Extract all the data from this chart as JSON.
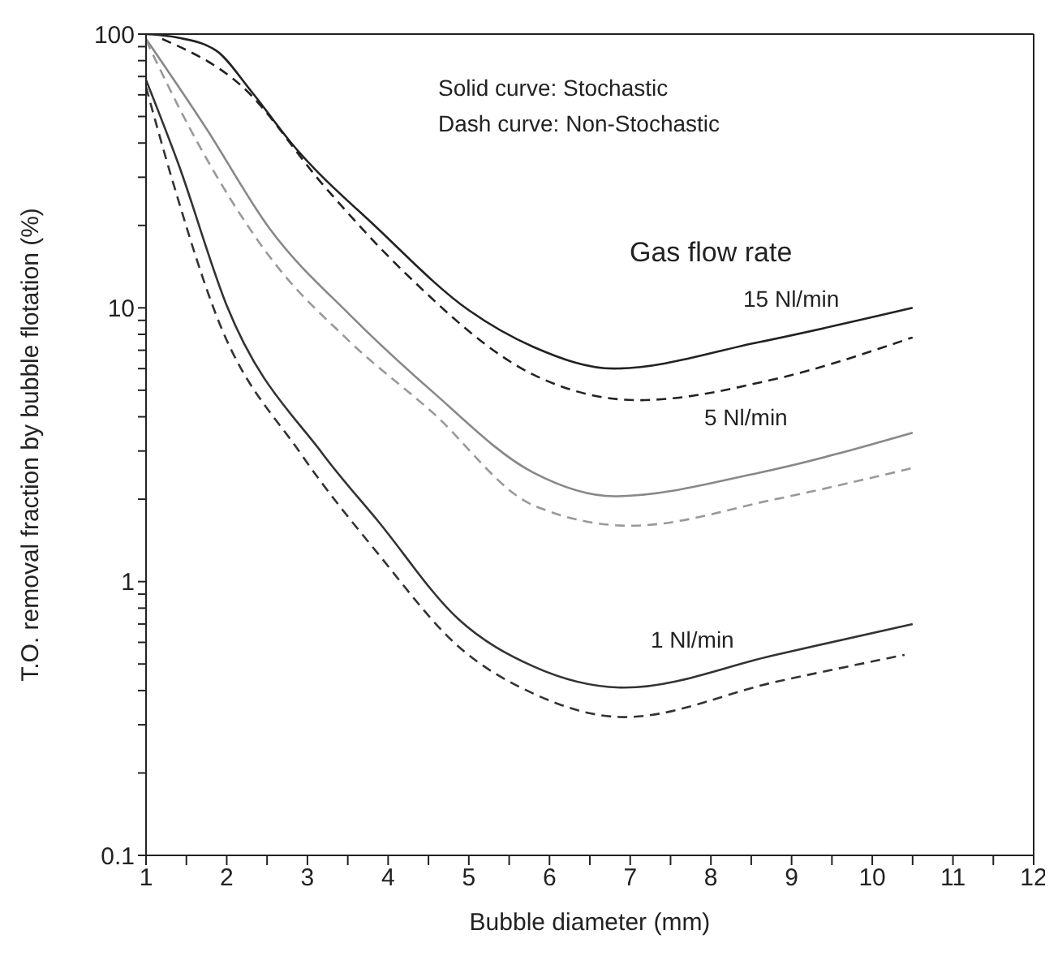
{
  "chart_data": {
    "type": "line",
    "xlabel": "Bubble diameter (mm)",
    "ylabel": "T.O. removal fraction by bubble flotation (%)",
    "log": "y",
    "xlim": [
      1,
      12
    ],
    "xticks": [
      1,
      {
        "value": 1.5,
        "label": null
      },
      2,
      {
        "value": 2.5,
        "label": null
      },
      3,
      {
        "value": 3.5,
        "label": null
      },
      4,
      {
        "value": 4.5,
        "label": null
      },
      5,
      {
        "value": 5.5,
        "label": null
      },
      6,
      {
        "value": 6.5,
        "label": null
      },
      7,
      {
        "value": 7.5,
        "label": null
      },
      8,
      {
        "value": 8.5,
        "label": null
      },
      9,
      {
        "value": 9.5,
        "label": null
      },
      10,
      {
        "value": 10.5,
        "label": null
      },
      11,
      {
        "value": 11.5,
        "label": null
      },
      12
    ],
    "ylim": [
      0.1,
      100
    ],
    "yticks": [
      0.1,
      {
        "value": 0.2,
        "label": null
      },
      {
        "value": 0.3,
        "label": null
      },
      {
        "value": 0.4,
        "label": null
      },
      {
        "value": 0.5,
        "label": null
      },
      {
        "value": 0.6,
        "label": null
      },
      {
        "value": 0.7,
        "label": null
      },
      {
        "value": 0.8,
        "label": null
      },
      {
        "value": 0.9,
        "label": null
      },
      1,
      {
        "value": 2,
        "label": null
      },
      {
        "value": 3,
        "label": null
      },
      {
        "value": 4,
        "label": null
      },
      {
        "value": 5,
        "label": null
      },
      {
        "value": 6,
        "label": null
      },
      {
        "value": 7,
        "label": null
      },
      {
        "value": 8,
        "label": null
      },
      {
        "value": 9,
        "label": null
      },
      10,
      {
        "value": 20,
        "label": null
      },
      {
        "value": 30,
        "label": null
      },
      {
        "value": 40,
        "label": null
      },
      {
        "value": 50,
        "label": null
      },
      {
        "value": 60,
        "label": null
      },
      {
        "value": 70,
        "label": null
      },
      {
        "value": 80,
        "label": null
      },
      {
        "value": 90,
        "label": null
      },
      100
    ],
    "series": [
      {
        "color": "#222222",
        "line_style": "solid",
        "x": [
          1,
          1.4,
          1.87,
          2.3,
          2.8,
          3.87,
          5,
          5.8,
          6.8,
          8.6,
          10.5
        ],
        "values": [
          100,
          97,
          87,
          62,
          40,
          19.5,
          9.8,
          7.2,
          6.0,
          7.5,
          10
        ]
      },
      {
        "color": "#222222",
        "line_style": "dashed",
        "x": [
          1.2,
          2.2,
          3.2,
          4.2,
          5.8,
          7.1,
          8.8,
          10.5
        ],
        "values": [
          96,
          64,
          28,
          13.5,
          5.7,
          4.6,
          5.5,
          7.8
        ]
      },
      {
        "color": "#888888",
        "line_style": "solid",
        "x": [
          1,
          1.73,
          2.53,
          3.53,
          4.53,
          5.8,
          6.8,
          8.6,
          10.5
        ],
        "values": [
          96,
          46,
          19.5,
          9.4,
          5.0,
          2.5,
          2.05,
          2.5,
          3.5
        ]
      },
      {
        "color": "#999999",
        "line_style": "dashed",
        "x": [
          1,
          1.53,
          2.53,
          3.53,
          4.53,
          5.8,
          7,
          8.8,
          10.5
        ],
        "values": [
          95,
          46,
          15.4,
          7.5,
          4.2,
          1.9,
          1.6,
          2.0,
          2.6
        ]
      },
      {
        "color": "#333333",
        "line_style": "solid",
        "x": [
          1,
          1.4,
          2,
          3.2,
          3.87,
          4.87,
          5.8,
          6.93,
          8.8,
          10.5
        ],
        "values": [
          68,
          33.6,
          10.2,
          2.9,
          1.67,
          0.73,
          0.49,
          0.41,
          0.54,
          0.7
        ]
      },
      {
        "color": "#333333",
        "line_style": "dashed",
        "x": [
          1,
          1.33,
          1.87,
          2.93,
          3.87,
          4.87,
          5.8,
          6.93,
          8.8,
          10.4
        ],
        "values": [
          64,
          29,
          9.4,
          2.9,
          1.27,
          0.58,
          0.39,
          0.32,
          0.43,
          0.54
        ]
      }
    ],
    "annotations": [
      "Solid curve: Stochastic",
      "Dash curve: Non-Stochastic",
      "Gas flow rate",
      "15 Nl/min",
      "5 Nl/min",
      "1 Nl/min"
    ]
  }
}
